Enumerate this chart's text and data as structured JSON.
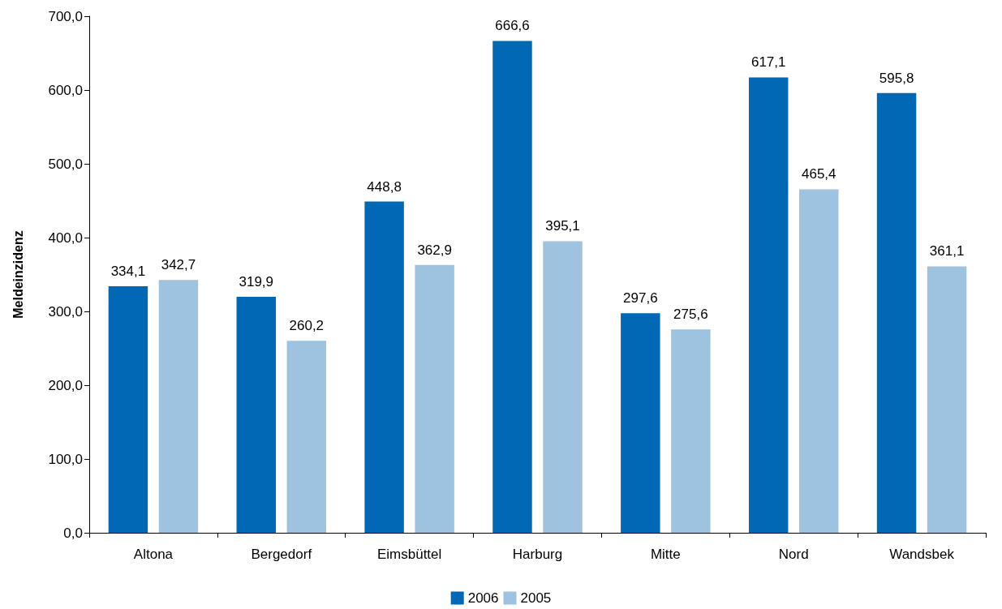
{
  "chart_data": {
    "type": "bar",
    "ylabel": "Meldeinzidenz",
    "categories": [
      "Altona",
      "Bergedorf",
      "Eimsbüttel",
      "Harburg",
      "Mitte",
      "Nord",
      "Wandsbek"
    ],
    "series": [
      {
        "name": "2006",
        "color": "#0068b4",
        "values": [
          334.1,
          319.9,
          448.8,
          666.6,
          297.6,
          617.1,
          595.8
        ],
        "value_labels": [
          "334,1",
          "319,9",
          "448,8",
          "666,6",
          "297,6",
          "617,1",
          "595,8"
        ]
      },
      {
        "name": "2005",
        "color": "#9dc3e1",
        "values": [
          342.7,
          260.2,
          362.9,
          395.1,
          275.6,
          465.4,
          361.1
        ],
        "value_labels": [
          "342,7",
          "260,2",
          "362,9",
          "395,1",
          "275,6",
          "465,4",
          "361,1"
        ]
      }
    ],
    "ylim": [
      0,
      700
    ],
    "yticks": [
      {
        "value": 0,
        "label": "0,0"
      },
      {
        "value": 100,
        "label": "100,0"
      },
      {
        "value": 200,
        "label": "200,0"
      },
      {
        "value": 300,
        "label": "300,0"
      },
      {
        "value": 400,
        "label": "400,0"
      },
      {
        "value": 500,
        "label": "500,0"
      },
      {
        "value": 600,
        "label": "600,0"
      },
      {
        "value": 700,
        "label": "700,0"
      }
    ],
    "grid": false,
    "legend": "bottom"
  }
}
